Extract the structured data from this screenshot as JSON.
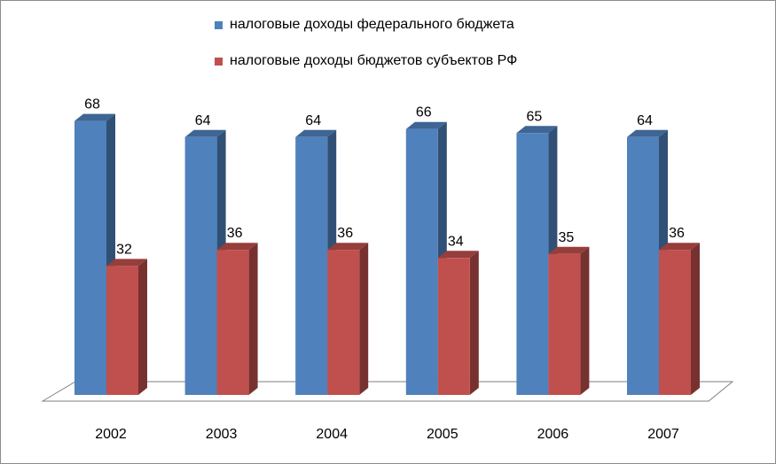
{
  "chart_data": {
    "type": "bar",
    "categories": [
      "2002",
      "2003",
      "2004",
      "2005",
      "2006",
      "2007"
    ],
    "series": [
      {
        "name": "налоговые доходы федерального бюджета",
        "values": [
          68,
          64,
          64,
          66,
          65,
          64
        ],
        "color": "#4f81bd"
      },
      {
        "name": "налоговые доходы бюджетов субъектов РФ",
        "values": [
          32,
          36,
          36,
          34,
          35,
          36
        ],
        "color": "#c0504d"
      }
    ],
    "title": "",
    "xlabel": "",
    "ylabel": "",
    "ylim": [
      0,
      70
    ],
    "grid": false,
    "legend_position": "top",
    "style": "3d-clustered-column"
  }
}
